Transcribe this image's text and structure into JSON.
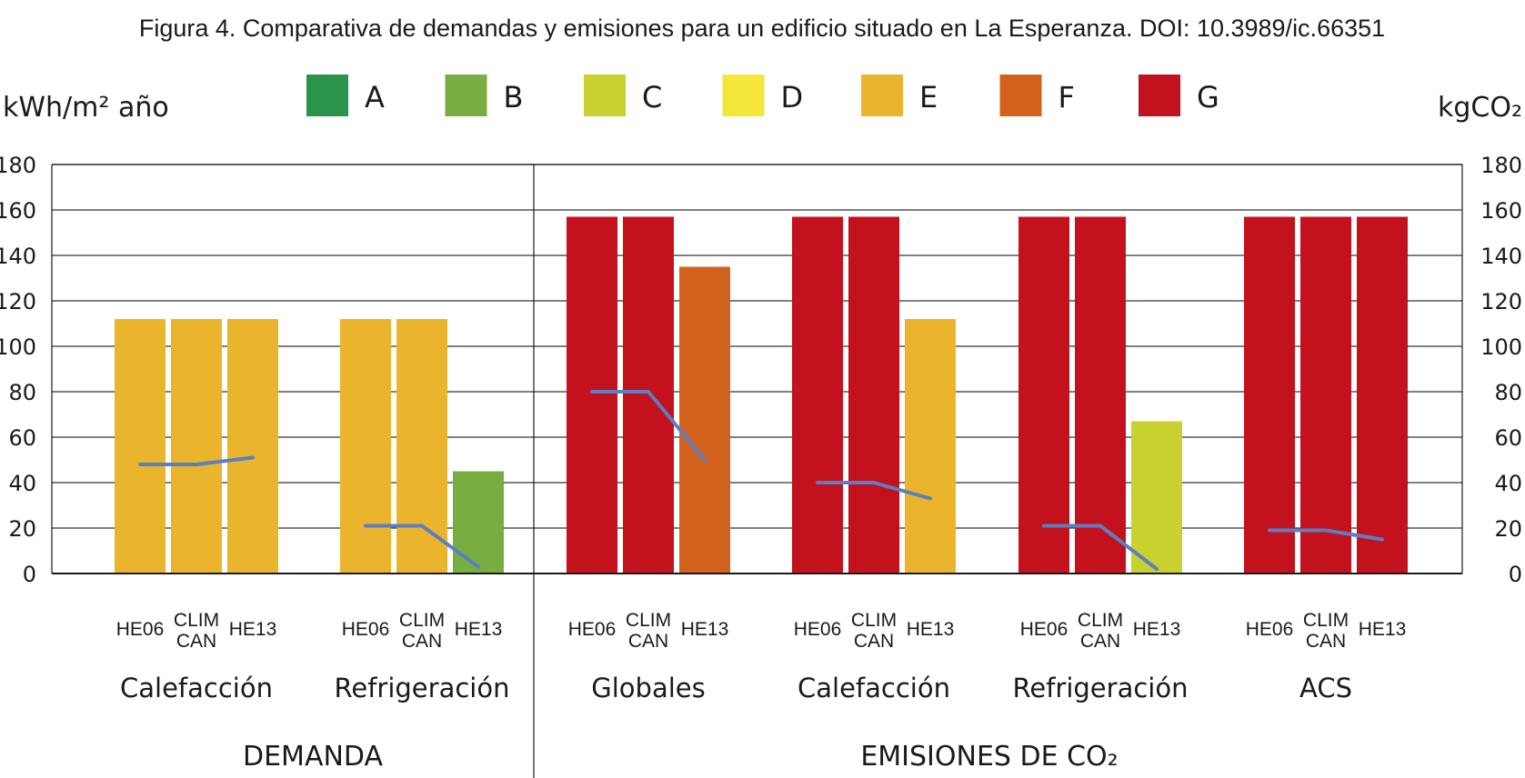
{
  "chart_data": {
    "type": "bar",
    "title": "Figura 4. Comparativa de demandas y emisiones para un edificio situado en La Esperanza. DOI: 10.3989/ic.66351",
    "ylabel_left": "kWh/m² año",
    "ylabel_right": "kgCO₂",
    "ylim": [
      0,
      180
    ],
    "yticks": [
      0,
      20,
      40,
      60,
      80,
      100,
      120,
      140,
      160,
      180
    ],
    "grid": true,
    "legend_position": "top",
    "legend": [
      {
        "label": "A",
        "color": "#2a944a"
      },
      {
        "label": "B",
        "color": "#78ad41"
      },
      {
        "label": "C",
        "color": "#c9d130"
      },
      {
        "label": "D",
        "color": "#f5e63b"
      },
      {
        "label": "E",
        "color": "#eab52d"
      },
      {
        "label": "F",
        "color": "#d3621f"
      },
      {
        "label": "G",
        "color": "#c3111d"
      }
    ],
    "sections": [
      {
        "label": "DEMANDA",
        "groups": [
          0,
          1
        ]
      },
      {
        "label": "EMISIONES DE CO₂",
        "groups": [
          2,
          3,
          4,
          5
        ]
      }
    ],
    "groups": [
      {
        "label": "Calefacción",
        "bars": [
          {
            "label": "HE06",
            "value": 112,
            "class": "E"
          },
          {
            "label": "CLIM CAN",
            "value": 112,
            "class": "E"
          },
          {
            "label": "HE13",
            "value": 112,
            "class": "E"
          }
        ],
        "line": [
          48,
          48,
          51
        ]
      },
      {
        "label": "Refrigeración",
        "bars": [
          {
            "label": "HE06",
            "value": 112,
            "class": "E"
          },
          {
            "label": "CLIM CAN",
            "value": 112,
            "class": "E"
          },
          {
            "label": "HE13",
            "value": 45,
            "class": "B"
          }
        ],
        "line": [
          21,
          21,
          3
        ]
      },
      {
        "label": "Globales",
        "bars": [
          {
            "label": "HE06",
            "value": 157,
            "class": "G"
          },
          {
            "label": "CLIM CAN",
            "value": 157,
            "class": "G"
          },
          {
            "label": "HE13",
            "value": 135,
            "class": "F"
          }
        ],
        "line": [
          80,
          80,
          50
        ]
      },
      {
        "label": "Calefacción",
        "bars": [
          {
            "label": "HE06",
            "value": 157,
            "class": "G"
          },
          {
            "label": "CLIM CAN",
            "value": 157,
            "class": "G"
          },
          {
            "label": "HE13",
            "value": 112,
            "class": "E"
          }
        ],
        "line": [
          40,
          40,
          33
        ]
      },
      {
        "label": "Refrigeración",
        "bars": [
          {
            "label": "HE06",
            "value": 157,
            "class": "G"
          },
          {
            "label": "CLIM CAN",
            "value": 157,
            "class": "G"
          },
          {
            "label": "HE13",
            "value": 67,
            "class": "C"
          }
        ],
        "line": [
          21,
          21,
          2
        ]
      },
      {
        "label": "ACS",
        "bars": [
          {
            "label": "HE06",
            "value": 157,
            "class": "G"
          },
          {
            "label": "CLIM CAN",
            "value": 157,
            "class": "G"
          },
          {
            "label": "HE13",
            "value": 157,
            "class": "G"
          }
        ],
        "line": [
          19,
          19,
          15
        ]
      }
    ],
    "line_color": "#5b7fc1",
    "axis_color": "#1a1a1a",
    "grid_color": "#333333"
  }
}
